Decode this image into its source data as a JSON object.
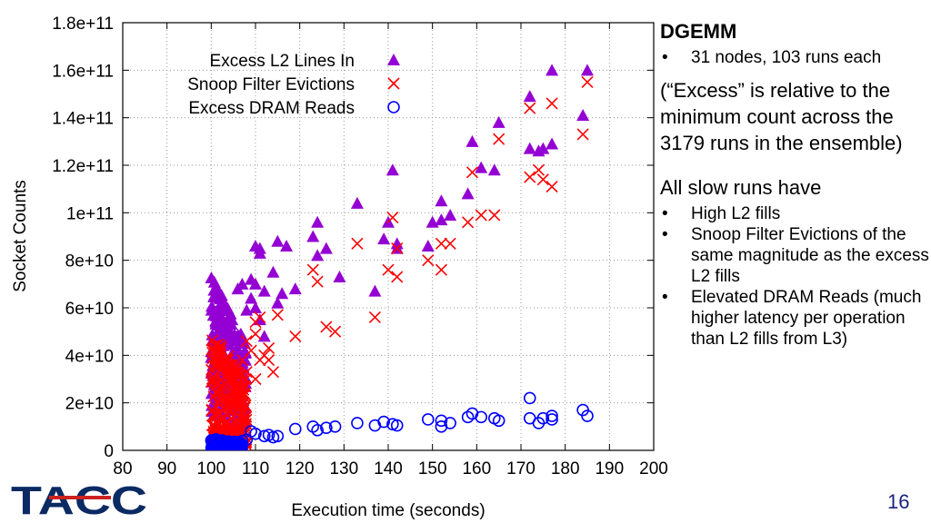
{
  "chart_data": {
    "type": "scatter",
    "xlabel": "Execution time (seconds)",
    "ylabel": "Socket Counts",
    "xlim": [
      80,
      200
    ],
    "ylim": [
      0,
      180000000000
    ],
    "x_ticks": [
      "80",
      "90",
      "100",
      "110",
      "120",
      "130",
      "140",
      "150",
      "160",
      "170",
      "180",
      "190",
      "200"
    ],
    "y_ticks": [
      "0",
      "2e+10",
      "4e+10",
      "6e+10",
      "8e+10",
      "1e+11",
      "1.2e+11",
      "1.4e+11",
      "1.6e+11",
      "1.8e+11"
    ],
    "grid": true,
    "legend_position": "top-left",
    "series": [
      {
        "name": "Excess L2 Lines In",
        "marker": "triangle",
        "color": "#9400d3",
        "points": [
          [
            110,
            86000000000
          ],
          [
            111,
            83000000000
          ],
          [
            111,
            85000000000
          ],
          [
            115,
            88000000000
          ],
          [
            117,
            86000000000
          ],
          [
            115,
            62000000000
          ],
          [
            114,
            75000000000
          ],
          [
            116,
            66000000000
          ],
          [
            119,
            68000000000
          ],
          [
            123,
            90000000000
          ],
          [
            124,
            96000000000
          ],
          [
            124,
            82000000000
          ],
          [
            126,
            85000000000
          ],
          [
            129,
            73000000000
          ],
          [
            133,
            104000000000
          ],
          [
            137,
            67000000000
          ],
          [
            139,
            89000000000
          ],
          [
            140,
            96000000000
          ],
          [
            141,
            118000000000
          ],
          [
            142,
            87000000000
          ],
          [
            142,
            85000000000
          ],
          [
            149,
            86000000000
          ],
          [
            150,
            96000000000
          ],
          [
            152,
            105000000000
          ],
          [
            152,
            97000000000
          ],
          [
            154,
            99000000000
          ],
          [
            158,
            108000000000
          ],
          [
            159,
            130000000000
          ],
          [
            161,
            119000000000
          ],
          [
            164,
            118000000000
          ],
          [
            165,
            138000000000
          ],
          [
            172,
            149000000000
          ],
          [
            172,
            127000000000
          ],
          [
            174,
            126000000000
          ],
          [
            175,
            127000000000
          ],
          [
            177,
            129000000000
          ],
          [
            177,
            160000000000
          ],
          [
            184,
            141000000000
          ],
          [
            185,
            160000000000
          ],
          [
            110,
            70000000000
          ],
          [
            111,
            55000000000
          ],
          [
            112,
            67000000000
          ],
          [
            110,
            60000000000
          ],
          [
            109,
            64000000000
          ],
          [
            108,
            59000000000
          ],
          [
            109,
            72000000000
          ],
          [
            107,
            70000000000
          ],
          [
            106,
            68000000000
          ],
          [
            112,
            48000000000
          ]
        ]
      },
      {
        "name": "Snoop Filter Evictions",
        "marker": "x",
        "color": "#ff0000",
        "points": [
          [
            114,
            33000000000
          ],
          [
            111,
            38000000000
          ],
          [
            112,
            40000000000
          ],
          [
            113,
            38000000000
          ],
          [
            113,
            43000000000
          ],
          [
            115,
            57000000000
          ],
          [
            119,
            48000000000
          ],
          [
            123,
            76000000000
          ],
          [
            124,
            71000000000
          ],
          [
            126,
            52000000000
          ],
          [
            128,
            50000000000
          ],
          [
            133,
            87000000000
          ],
          [
            137,
            56000000000
          ],
          [
            140,
            76000000000
          ],
          [
            141,
            98000000000
          ],
          [
            142,
            73000000000
          ],
          [
            142,
            85000000000
          ],
          [
            149,
            80000000000
          ],
          [
            152,
            87000000000
          ],
          [
            152,
            76000000000
          ],
          [
            154,
            87000000000
          ],
          [
            158,
            96000000000
          ],
          [
            159,
            117000000000
          ],
          [
            161,
            99000000000
          ],
          [
            164,
            99000000000
          ],
          [
            165,
            131000000000
          ],
          [
            172,
            144000000000
          ],
          [
            172,
            115000000000
          ],
          [
            174,
            118000000000
          ],
          [
            175,
            114000000000
          ],
          [
            177,
            111000000000
          ],
          [
            177,
            146000000000
          ],
          [
            184,
            133000000000
          ],
          [
            185,
            155000000000
          ],
          [
            110,
            30000000000
          ],
          [
            109,
            42000000000
          ],
          [
            110,
            49000000000
          ],
          [
            108,
            46000000000
          ],
          [
            107,
            38000000000
          ],
          [
            108,
            33000000000
          ],
          [
            106,
            35000000000
          ],
          [
            105,
            30000000000
          ],
          [
            110,
            54000000000
          ],
          [
            111,
            56000000000
          ]
        ]
      },
      {
        "name": "Excess DRAM Reads",
        "marker": "circle",
        "color": "#0000ff",
        "points": [
          [
            109,
            8000000000
          ],
          [
            110,
            7000000000
          ],
          [
            112,
            6000000000
          ],
          [
            113,
            6500000000
          ],
          [
            114,
            5500000000
          ],
          [
            115,
            6000000000
          ],
          [
            119,
            9000000000
          ],
          [
            123,
            10000000000
          ],
          [
            124,
            8500000000
          ],
          [
            126,
            9500000000
          ],
          [
            128,
            10000000000
          ],
          [
            133,
            11500000000
          ],
          [
            137,
            10500000000
          ],
          [
            139,
            12000000000
          ],
          [
            141,
            11000000000
          ],
          [
            142,
            10500000000
          ],
          [
            149,
            13000000000
          ],
          [
            152,
            12500000000
          ],
          [
            152,
            10000000000
          ],
          [
            154,
            11500000000
          ],
          [
            158,
            14000000000
          ],
          [
            159,
            15500000000
          ],
          [
            161,
            14000000000
          ],
          [
            164,
            13500000000
          ],
          [
            165,
            12500000000
          ],
          [
            172,
            22000000000
          ],
          [
            172,
            13500000000
          ],
          [
            174,
            11500000000
          ],
          [
            175,
            13500000000
          ],
          [
            177,
            14500000000
          ],
          [
            177,
            13000000000
          ],
          [
            184,
            17000000000
          ],
          [
            185,
            14500000000
          ],
          [
            101,
            1000000000
          ],
          [
            102,
            1500000000
          ],
          [
            103,
            2000000000
          ],
          [
            104,
            2500000000
          ],
          [
            105,
            3000000000
          ],
          [
            106,
            3500000000
          ],
          [
            107,
            4000000000
          ],
          [
            108,
            4500000000
          ],
          [
            102,
            3000000000
          ],
          [
            104,
            1500000000
          ]
        ]
      }
    ]
  },
  "notes": {
    "heading": "DGEMM",
    "bullets_top": [
      "31 nodes, 103 runs each"
    ],
    "paragraph": "(“Excess” is relative to the minimum count across the 3179 runs in the ensemble)",
    "subheading": "All slow runs have",
    "bullets": [
      "High L2 fills",
      "Snoop Filter Evictions of the same magnitude as the excess L2 fills",
      "Elevated DRAM Reads (much higher latency per operation than L2 fills from L3)"
    ],
    "bullet_char": "•"
  },
  "logo_text": "TACC",
  "page_number": "16"
}
